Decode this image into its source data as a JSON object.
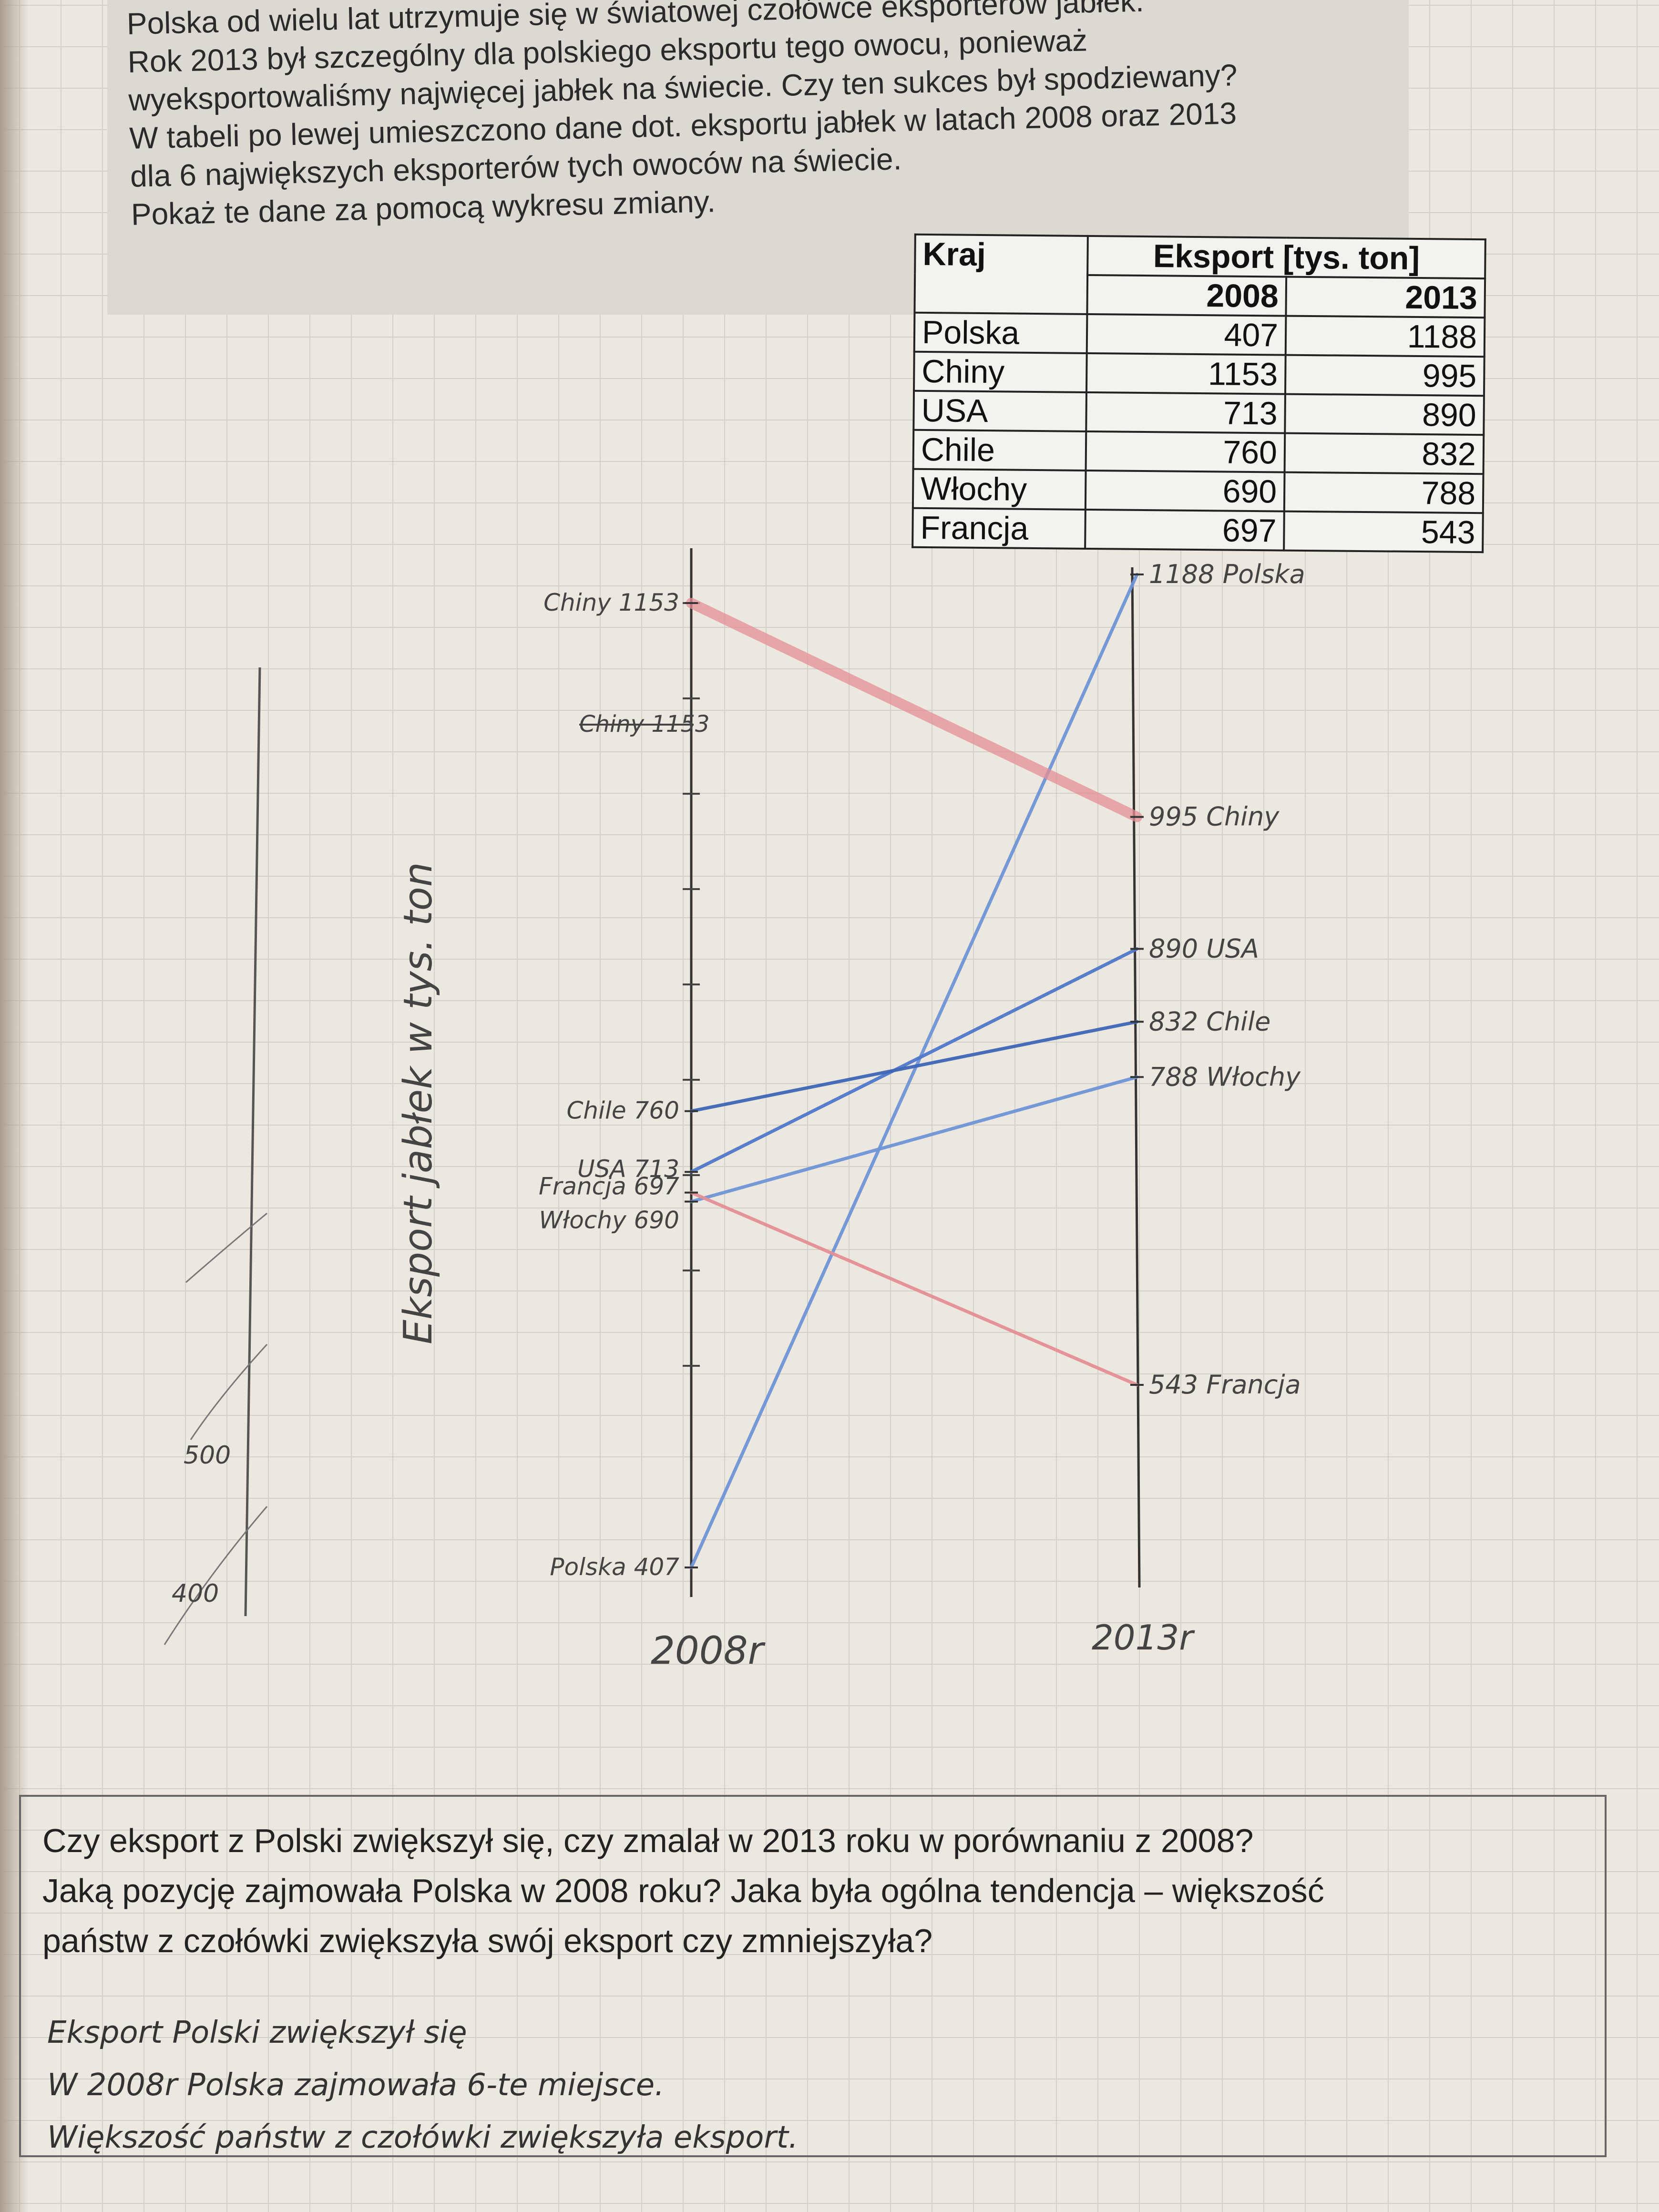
{
  "prompt": {
    "lines": [
      "Polska od wielu lat utrzymuje się w światowej czołówce eksporterów jabłek.",
      "Rok 2013 był szczególny dla polskiego eksportu tego owocu, ponieważ",
      "wyeksportowaliśmy najwięcej jabłek na świecie. Czy ten sukces był spodziewany?",
      "W tabeli po lewej umieszczono dane dot. eksportu jabłek w latach 2008 oraz 2013",
      "dla 6 największych eksporterów tych owoców na świecie.",
      "Pokaż te dane za pomocą wykresu zmiany."
    ]
  },
  "table": {
    "header_country": "Kraj",
    "header_export": "Eksport [tys. ton]",
    "header_2008": "2008",
    "header_2013": "2013",
    "rows": [
      {
        "country": "Polska",
        "v2008": "407",
        "v2013": "1188"
      },
      {
        "country": "Chiny",
        "v2008": "1153",
        "v2013": "995"
      },
      {
        "country": "USA",
        "v2008": "713",
        "v2013": "890"
      },
      {
        "country": "Chile",
        "v2008": "760",
        "v2013": "832"
      },
      {
        "country": "Włochy",
        "v2008": "690",
        "v2013": "788"
      },
      {
        "country": "Francja",
        "v2008": "697",
        "v2013": "543"
      }
    ]
  },
  "chart_data": {
    "type": "line",
    "x": [
      "2008r",
      "2013r"
    ],
    "ylabel": "Eksport jabłek w tys. ton",
    "ylim": [
      400,
      1200
    ],
    "series": [
      {
        "name": "Polska",
        "values": [
          407,
          1188
        ],
        "color": "#6f95d6",
        "label_2008": "Polska 407",
        "label_2013": "1188 Polska"
      },
      {
        "name": "Chiny",
        "values": [
          1153,
          995
        ],
        "color": "#e48f95",
        "label_2008": "Chiny 1153",
        "label_2013": "995 Chiny"
      },
      {
        "name": "USA",
        "values": [
          713,
          890
        ],
        "color": "#4f78c8",
        "label_2008": "USA 713",
        "label_2013": "890 USA"
      },
      {
        "name": "Chile",
        "values": [
          760,
          832
        ],
        "color": "#3f66b5",
        "label_2008": "Chile 760",
        "label_2013": "832 Chile"
      },
      {
        "name": "Włochy",
        "values": [
          690,
          788
        ],
        "color": "#6f95d6",
        "label_2008": "Włochy 690",
        "label_2013": "788 Włochy"
      },
      {
        "name": "Francja",
        "values": [
          697,
          543
        ],
        "color": "#e48f95",
        "label_2008": "Francja 697",
        "label_2013": "543 Francja"
      }
    ],
    "crossed_out_label": "Chiny 1153",
    "abandoned_axis_ticks": [
      "500",
      "400"
    ]
  },
  "question": {
    "lines": [
      "Czy eksport z Polski zwiększył się, czy zmalał w 2013 roku w porównaniu z 2008?",
      "Jaką pozycję zajmowała Polska w 2008 roku? Jaka była ogólna tendencja – większość",
      "państw z czołówki zwiększyła swój eksport czy zmniejszyła?"
    ]
  },
  "answer": {
    "lines": [
      "Eksport Polski zwiększył się",
      "W 2008r Polska zajmowała 6-te miejsce.",
      "Większość państw z czołówki zwiększyła eksport."
    ]
  }
}
